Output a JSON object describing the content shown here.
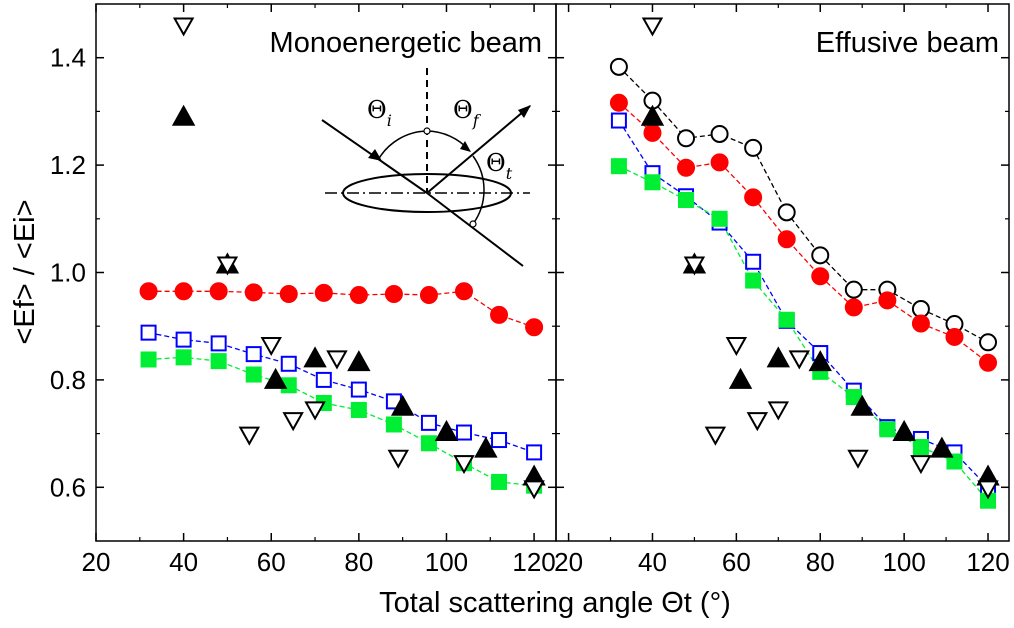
{
  "chart_data": [
    {
      "type": "scatter",
      "title": "Monoenergetic beam",
      "xlabel": "Total scattering angle Θt (°)",
      "ylabel": "<Ef> / <Ei>",
      "xlim": [
        20,
        125
      ],
      "ylim": [
        0.5,
        1.5
      ],
      "xticks": [
        20,
        40,
        60,
        80,
        100,
        120
      ],
      "yticks": [
        0.6,
        0.8,
        1.0,
        1.2,
        1.4
      ],
      "xtick_labels": [
        "20",
        "40",
        "60",
        "80",
        "100",
        "120"
      ],
      "ytick_labels": [
        "0.6",
        "0.8",
        "1.0",
        "1.2",
        "1.4"
      ],
      "series": [
        {
          "marker": "circle",
          "fill": true,
          "color": "#ff0000",
          "line": true,
          "x": [
            32,
            40,
            48,
            56,
            64,
            72,
            80,
            88,
            96,
            104,
            112,
            120
          ],
          "y": [
            0.965,
            0.965,
            0.965,
            0.963,
            0.96,
            0.962,
            0.958,
            0.96,
            0.958,
            0.965,
            0.921,
            0.898
          ]
        },
        {
          "marker": "square",
          "fill": false,
          "color": "#0000ff",
          "line": true,
          "x": [
            32,
            40,
            48,
            56,
            64,
            72,
            80,
            88,
            96,
            104,
            112,
            120
          ],
          "y": [
            0.888,
            0.875,
            0.868,
            0.848,
            0.83,
            0.8,
            0.782,
            0.76,
            0.72,
            0.702,
            0.688,
            0.665
          ]
        },
        {
          "marker": "square",
          "fill": true,
          "color": "#00ee33",
          "line": true,
          "x": [
            32,
            40,
            48,
            56,
            64,
            72,
            80,
            88,
            96,
            104,
            112,
            120
          ],
          "y": [
            0.838,
            0.842,
            0.835,
            0.81,
            0.79,
            0.757,
            0.744,
            0.717,
            0.682,
            0.645,
            0.61,
            0.603
          ]
        },
        {
          "marker": "triangle-up",
          "fill": true,
          "color": "#000000",
          "line": false,
          "x": [
            40,
            50,
            61,
            70,
            80,
            90,
            100,
            109,
            120
          ],
          "y": [
            1.29,
            1.015,
            0.8,
            0.84,
            0.833,
            0.75,
            0.703,
            0.672,
            0.62
          ]
        },
        {
          "marker": "triangle-down",
          "fill": false,
          "color": "#000000",
          "line": false,
          "x": [
            40,
            50,
            55,
            60,
            65,
            70,
            75,
            89,
            104,
            120
          ],
          "y": [
            1.46,
            1.015,
            0.698,
            0.865,
            0.725,
            0.745,
            0.84,
            0.655,
            0.645,
            0.598
          ]
        }
      ]
    },
    {
      "type": "scatter",
      "title": "Effusive beam",
      "xlabel": "Total scattering angle Θt (°)",
      "ylabel": "",
      "xlim": [
        17,
        125
      ],
      "ylim": [
        0.5,
        1.5
      ],
      "xticks": [
        20,
        40,
        60,
        80,
        100,
        120
      ],
      "yticks": [
        0.6,
        0.8,
        1.0,
        1.2,
        1.4
      ],
      "xtick_labels": [
        "20",
        "40",
        "60",
        "80",
        "100",
        "120"
      ],
      "series": [
        {
          "marker": "circle",
          "fill": false,
          "color": "#000000",
          "line": true,
          "x": [
            32,
            40,
            48,
            56,
            64,
            72,
            80,
            88,
            96,
            104,
            112,
            120
          ],
          "y": [
            1.383,
            1.32,
            1.25,
            1.258,
            1.232,
            1.112,
            1.032,
            0.968,
            0.968,
            0.932,
            0.904,
            0.87
          ]
        },
        {
          "marker": "circle",
          "fill": true,
          "color": "#ff0000",
          "line": true,
          "x": [
            32,
            40,
            48,
            56,
            64,
            72,
            80,
            88,
            96,
            104,
            112,
            120
          ],
          "y": [
            1.316,
            1.26,
            1.195,
            1.205,
            1.14,
            1.062,
            0.993,
            0.935,
            0.948,
            0.905,
            0.88,
            0.832
          ]
        },
        {
          "marker": "square",
          "fill": false,
          "color": "#0000ff",
          "line": true,
          "x": [
            32,
            40,
            48,
            56,
            64,
            72,
            80,
            88,
            96,
            104,
            112,
            120
          ],
          "y": [
            1.283,
            1.185,
            1.142,
            1.093,
            1.02,
            0.91,
            0.85,
            0.78,
            0.712,
            0.69,
            0.665,
            0.6
          ]
        },
        {
          "marker": "square",
          "fill": true,
          "color": "#00ee33",
          "line": true,
          "x": [
            32,
            40,
            48,
            56,
            64,
            72,
            80,
            88,
            96,
            104,
            112,
            120
          ],
          "y": [
            1.198,
            1.168,
            1.135,
            1.1,
            0.985,
            0.912,
            0.815,
            0.768,
            0.708,
            0.675,
            0.648,
            0.575
          ]
        },
        {
          "marker": "triangle-up",
          "fill": true,
          "color": "#000000",
          "line": false,
          "x": [
            40,
            50,
            61,
            70,
            80,
            90,
            100,
            109,
            120
          ],
          "y": [
            1.29,
            1.015,
            0.8,
            0.84,
            0.833,
            0.75,
            0.703,
            0.672,
            0.62
          ]
        },
        {
          "marker": "triangle-down",
          "fill": false,
          "color": "#000000",
          "line": false,
          "x": [
            40,
            50,
            55,
            60,
            65,
            70,
            75,
            89,
            104,
            120
          ],
          "y": [
            1.46,
            1.015,
            0.698,
            0.865,
            0.725,
            0.745,
            0.84,
            0.655,
            0.645,
            0.598
          ]
        }
      ]
    }
  ],
  "inset": {
    "theta_i": "Θ",
    "theta_i_sub": "i",
    "theta_f": "Θ",
    "theta_f_sub": "f",
    "theta_t": "Θ",
    "theta_t_sub": "t"
  }
}
